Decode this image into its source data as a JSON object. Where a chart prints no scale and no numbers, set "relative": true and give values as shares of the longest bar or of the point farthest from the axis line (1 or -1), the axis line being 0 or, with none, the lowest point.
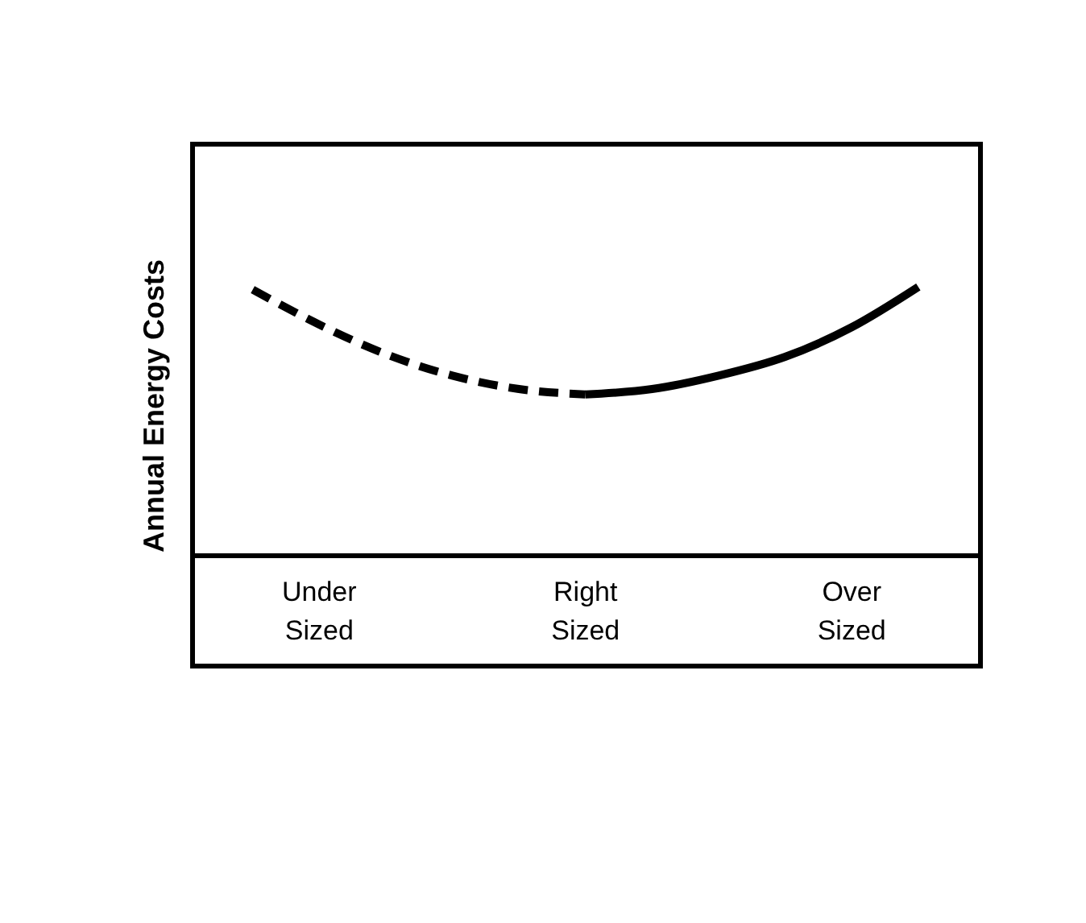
{
  "chart_data": {
    "type": "line",
    "relative": true,
    "ylabel": "Annual Energy Costs",
    "categories": [
      null,
      "Under Sized",
      null,
      null,
      null,
      "Right Sized",
      null,
      null,
      null,
      "Over Sized",
      null
    ],
    "series": [
      {
        "color": "#000000",
        "line_style": "dashed",
        "values": [
          0.99,
          0.86,
          0.75,
          0.67,
          0.62,
          0.6,
          null,
          null,
          null,
          null,
          null
        ]
      },
      {
        "color": "#000000",
        "line_style": "solid",
        "values": [
          null,
          null,
          null,
          null,
          null,
          0.6,
          0.62,
          0.67,
          0.74,
          0.85,
          1
        ]
      }
    ],
    "marker": "none",
    "grid": false,
    "tick_labels": "x"
  }
}
